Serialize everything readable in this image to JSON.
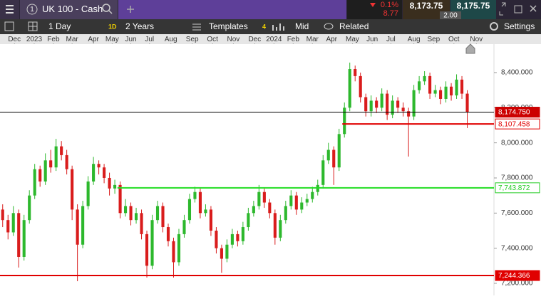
{
  "header": {
    "index": "1",
    "instrument": "UK 100 - Cash",
    "change_pct": "0.1%",
    "change_pts": "8.77",
    "sell": "8,173.75",
    "buy": "8,175.75",
    "spread": "2.00"
  },
  "toolbar": {
    "interval": "1 Day",
    "interval_badge": "1D",
    "range": "2 Years",
    "templates": "Templates",
    "indicators_count": "4",
    "price_type": "Mid",
    "related": "Related",
    "settings": "Settings"
  },
  "chart_data": {
    "type": "candlestick",
    "candles": [
      [
        7620,
        7650,
        7520,
        7560
      ],
      [
        7560,
        7590,
        7450,
        7490
      ],
      [
        7490,
        7640,
        7470,
        7600
      ],
      [
        7600,
        7620,
        7290,
        7350
      ],
      [
        7350,
        7590,
        7330,
        7560
      ],
      [
        7560,
        7730,
        7540,
        7700
      ],
      [
        7700,
        7880,
        7680,
        7850
      ],
      [
        7850,
        7870,
        7750,
        7780
      ],
      [
        7780,
        7940,
        7760,
        7900
      ],
      [
        7900,
        7960,
        7830,
        7860
      ],
      [
        7860,
        8023,
        7840,
        7980
      ],
      [
        7980,
        8010,
        7900,
        7930
      ],
      [
        7930,
        7960,
        7820,
        7850
      ],
      [
        7850,
        7870,
        7560,
        7620
      ],
      [
        7620,
        7650,
        7212,
        7420
      ],
      [
        7420,
        7670,
        7400,
        7640
      ],
      [
        7640,
        7810,
        7620,
        7780
      ],
      [
        7780,
        7920,
        7760,
        7880
      ],
      [
        7880,
        7900,
        7820,
        7860
      ],
      [
        7860,
        7880,
        7770,
        7800
      ],
      [
        7800,
        7830,
        7700,
        7740
      ],
      [
        7740,
        7790,
        7710,
        7760
      ],
      [
        7760,
        7780,
        7570,
        7600
      ],
      [
        7600,
        7680,
        7580,
        7640
      ],
      [
        7640,
        7660,
        7530,
        7560
      ],
      [
        7560,
        7630,
        7540,
        7600
      ],
      [
        7600,
        7620,
        7450,
        7480
      ],
      [
        7480,
        7500,
        7233,
        7300
      ],
      [
        7300,
        7590,
        7280,
        7560
      ],
      [
        7560,
        7670,
        7540,
        7640
      ],
      [
        7640,
        7660,
        7490,
        7520
      ],
      [
        7520,
        7540,
        7410,
        7440
      ],
      [
        7440,
        7460,
        7233,
        7320
      ],
      [
        7320,
        7510,
        7300,
        7480
      ],
      [
        7480,
        7590,
        7460,
        7560
      ],
      [
        7560,
        7710,
        7540,
        7680
      ],
      [
        7680,
        7750,
        7660,
        7720
      ],
      [
        7720,
        7740,
        7570,
        7600
      ],
      [
        7600,
        7650,
        7580,
        7620
      ],
      [
        7620,
        7640,
        7470,
        7500
      ],
      [
        7500,
        7520,
        7370,
        7400
      ],
      [
        7400,
        7420,
        7260,
        7340
      ],
      [
        7340,
        7450,
        7320,
        7420
      ],
      [
        7420,
        7510,
        7400,
        7480
      ],
      [
        7480,
        7500,
        7410,
        7440
      ],
      [
        7440,
        7550,
        7420,
        7520
      ],
      [
        7520,
        7630,
        7500,
        7600
      ],
      [
        7600,
        7670,
        7580,
        7640
      ],
      [
        7640,
        7760,
        7620,
        7720
      ],
      [
        7720,
        7740,
        7630,
        7660
      ],
      [
        7660,
        7680,
        7570,
        7600
      ],
      [
        7600,
        7620,
        7420,
        7460
      ],
      [
        7460,
        7590,
        7440,
        7560
      ],
      [
        7560,
        7670,
        7540,
        7640
      ],
      [
        7640,
        7730,
        7620,
        7700
      ],
      [
        7700,
        7720,
        7590,
        7620
      ],
      [
        7620,
        7690,
        7600,
        7660
      ],
      [
        7660,
        7710,
        7640,
        7680
      ],
      [
        7680,
        7750,
        7660,
        7720
      ],
      [
        7720,
        7790,
        7700,
        7760
      ],
      [
        7760,
        7930,
        7740,
        7900
      ],
      [
        7900,
        8000,
        7880,
        7960
      ],
      [
        7960,
        7980,
        7760,
        7860
      ],
      [
        7860,
        8080,
        7840,
        8050
      ],
      [
        8050,
        8230,
        8030,
        8200
      ],
      [
        8200,
        8457,
        8180,
        8420
      ],
      [
        8420,
        8440,
        8350,
        8380
      ],
      [
        8380,
        8400,
        8230,
        8260
      ],
      [
        8260,
        8280,
        8150,
        8180
      ],
      [
        8180,
        8270,
        8150,
        8240
      ],
      [
        8240,
        8260,
        8170,
        8200
      ],
      [
        8200,
        8310,
        8180,
        8280
      ],
      [
        8280,
        8300,
        8130,
        8160
      ],
      [
        8160,
        8270,
        8140,
        8240
      ],
      [
        8240,
        8260,
        8170,
        8200
      ],
      [
        8200,
        8230,
        8150,
        8180
      ],
      [
        8180,
        8200,
        7922,
        8150
      ],
      [
        8150,
        8330,
        8130,
        8300
      ],
      [
        8300,
        8380,
        8280,
        8350
      ],
      [
        8350,
        8408,
        8330,
        8380
      ],
      [
        8380,
        8400,
        8250,
        8280
      ],
      [
        8280,
        8330,
        8260,
        8300
      ],
      [
        8300,
        8320,
        8220,
        8250
      ],
      [
        8250,
        8350,
        8230,
        8320
      ],
      [
        8320,
        8340,
        8240,
        8270
      ],
      [
        8270,
        8390,
        8250,
        8360
      ],
      [
        8360,
        8380,
        8250,
        8280
      ],
      [
        8280,
        8300,
        8084,
        8175
      ]
    ],
    "up_color": "#2db82d",
    "down_color": "#d91c1c",
    "xlim": [
      -0.5,
      92
    ],
    "xticks": [
      {
        "value": 2.2,
        "label": "Dec"
      },
      {
        "value": 5.9,
        "label": "2023"
      },
      {
        "value": 9.5,
        "label": "Feb"
      },
      {
        "value": 13,
        "label": "Mar"
      },
      {
        "value": 17,
        "label": "Apr"
      },
      {
        "value": 20.5,
        "label": "May"
      },
      {
        "value": 24,
        "label": "Jun"
      },
      {
        "value": 27.5,
        "label": "Jul"
      },
      {
        "value": 31.5,
        "label": "Aug"
      },
      {
        "value": 35.5,
        "label": "Sep"
      },
      {
        "value": 39.3,
        "label": "Oct"
      },
      {
        "value": 43.2,
        "label": "Nov"
      },
      {
        "value": 47.2,
        "label": "Dec"
      },
      {
        "value": 50.8,
        "label": "2024"
      },
      {
        "value": 54.4,
        "label": "Feb"
      },
      {
        "value": 58,
        "label": "Mar"
      },
      {
        "value": 61.6,
        "label": "Apr"
      },
      {
        "value": 65.5,
        "label": "May"
      },
      {
        "value": 69.2,
        "label": "Jun"
      },
      {
        "value": 72.7,
        "label": "Jul"
      },
      {
        "value": 77,
        "label": "Aug"
      },
      {
        "value": 80.7,
        "label": "Sep"
      },
      {
        "value": 84.5,
        "label": "Oct"
      },
      {
        "value": 88.7,
        "label": "Nov"
      }
    ],
    "ylim": [
      7131,
      8562
    ],
    "yticks": [
      {
        "value": 7200,
        "label": "7,200.000"
      },
      {
        "value": 7400,
        "label": "7,400.000"
      },
      {
        "value": 7600,
        "label": "7,600.000"
      },
      {
        "value": 7800,
        "label": "7,800.000"
      },
      {
        "value": 8000,
        "label": "8,000.000"
      },
      {
        "value": 8200,
        "label": "8,200.000"
      },
      {
        "value": 8400,
        "label": "8,400.000"
      }
    ],
    "levels": [
      {
        "value": 8174.75,
        "label": "8,174.750",
        "color": "#000000",
        "tag_color": "#cc0000",
        "filled": true,
        "from": -0.5
      },
      {
        "value": 8107.458,
        "label": "8,107.458",
        "color": "#e00000",
        "tag_color": "#e00000",
        "filled": false,
        "from": 63.6
      },
      {
        "value": 7743.872,
        "label": "7,743.872",
        "color": "#22dd22",
        "tag_color": "#22cc22",
        "filled": false,
        "from": 21.5
      },
      {
        "value": 7244.366,
        "label": "7,244.366",
        "color": "#e00000",
        "tag_color": "#e00000",
        "filled": true,
        "from": -0.5
      }
    ]
  }
}
